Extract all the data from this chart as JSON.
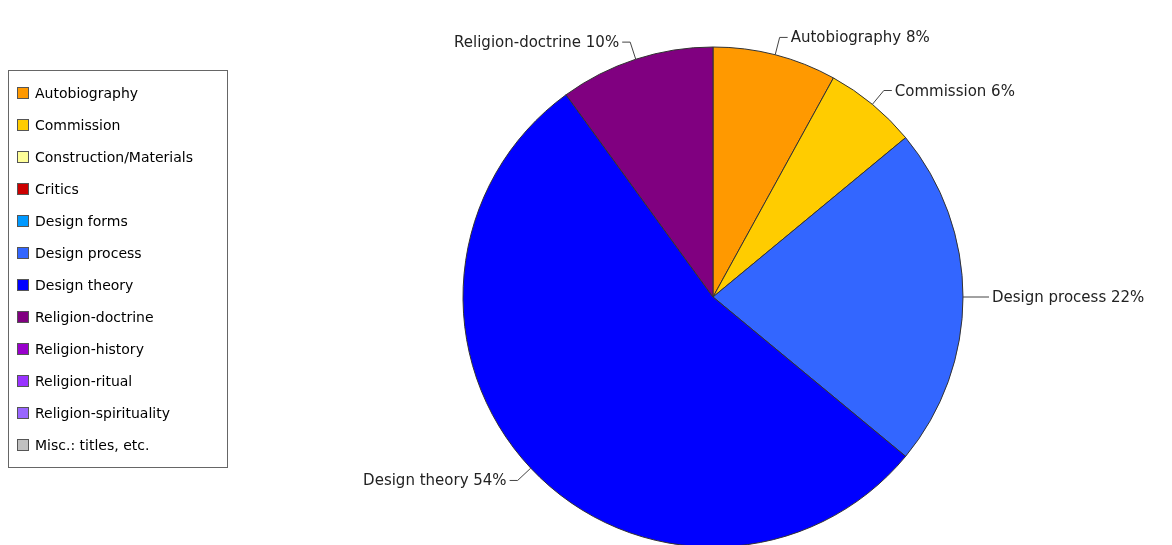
{
  "chart_data": {
    "type": "pie",
    "categories": [
      "Autobiography",
      "Commission",
      "Construction/Materials",
      "Critics",
      "Design forms",
      "Design process",
      "Design theory",
      "Religion-doctrine",
      "Religion-history",
      "Religion-ritual",
      "Religion-spirituality",
      "Misc.: titles, etc."
    ],
    "values": [
      8,
      6,
      0,
      0,
      0,
      22,
      54,
      10,
      0,
      0,
      0,
      0
    ],
    "colors": [
      "#ff9900",
      "#ffcc00",
      "#ffff99",
      "#cc0000",
      "#0099ff",
      "#3366ff",
      "#0000ff",
      "#800080",
      "#9900cc",
      "#9933ff",
      "#9966ff",
      "#c0c0c0"
    ],
    "value_labels": [
      "Autobiography 8%",
      "Commission 6%",
      null,
      null,
      null,
      "Design process 22%",
      "Design theory 54%",
      "Religion-doctrine 10%",
      null,
      null,
      null,
      null
    ],
    "legend": "left"
  }
}
